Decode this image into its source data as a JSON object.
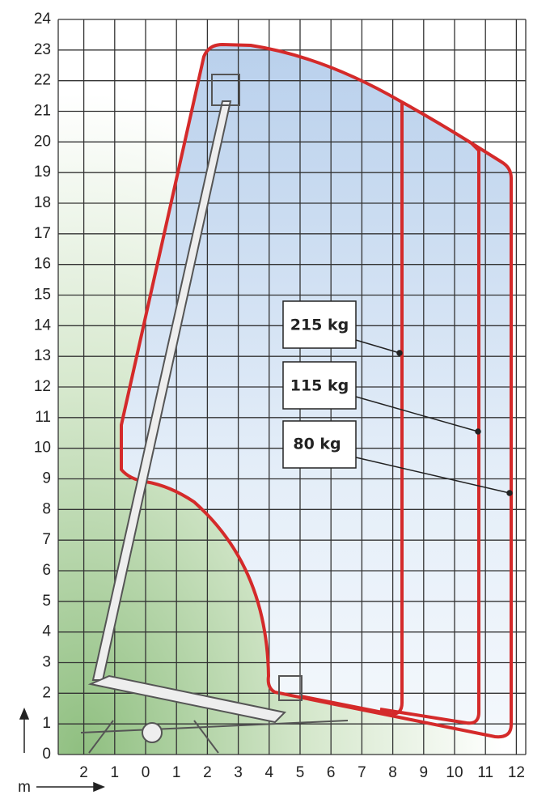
{
  "y_axis": {
    "tick_labels": [
      "0",
      "1",
      "2",
      "3",
      "4",
      "5",
      "6",
      "7",
      "8",
      "9",
      "10",
      "11",
      "12",
      "13",
      "14",
      "15",
      "16",
      "17",
      "18",
      "19",
      "20",
      "21",
      "22",
      "23",
      "24"
    ]
  },
  "x_axis": {
    "tick_labels": [
      "2",
      "1",
      "0",
      "1",
      "2",
      "3",
      "4",
      "5",
      "6",
      "7",
      "8",
      "9",
      "10",
      "11",
      "12"
    ],
    "unit": "m"
  },
  "loads": [
    "215 kg",
    "115 kg",
    "80 kg"
  ]
}
